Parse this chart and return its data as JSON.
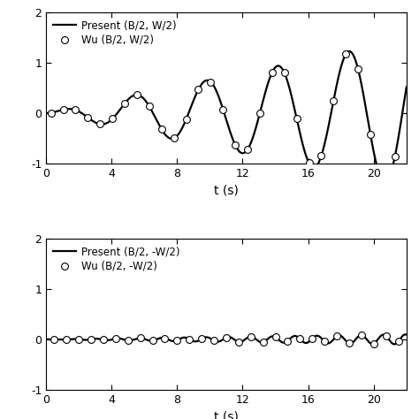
{
  "xlabel": "t (s)",
  "xlim": [
    0,
    22
  ],
  "ylim1": [
    -1,
    2
  ],
  "ylim2": [
    -1,
    2
  ],
  "xticks": [
    0,
    4,
    8,
    12,
    16,
    20
  ],
  "yticks1": [
    -1,
    0,
    1,
    2
  ],
  "yticks2": [
    -1,
    0,
    1,
    2
  ],
  "legend1_line": "Present (B/2, W/2)",
  "legend1_circle": "Wu (B/2, W/2)",
  "legend2_line": "Present (B/2, -W/2)",
  "legend2_circle": "Wu (B/2, -W/2)",
  "line_color": "black",
  "circle_facecolor": "white",
  "circle_edgecolor": "black"
}
